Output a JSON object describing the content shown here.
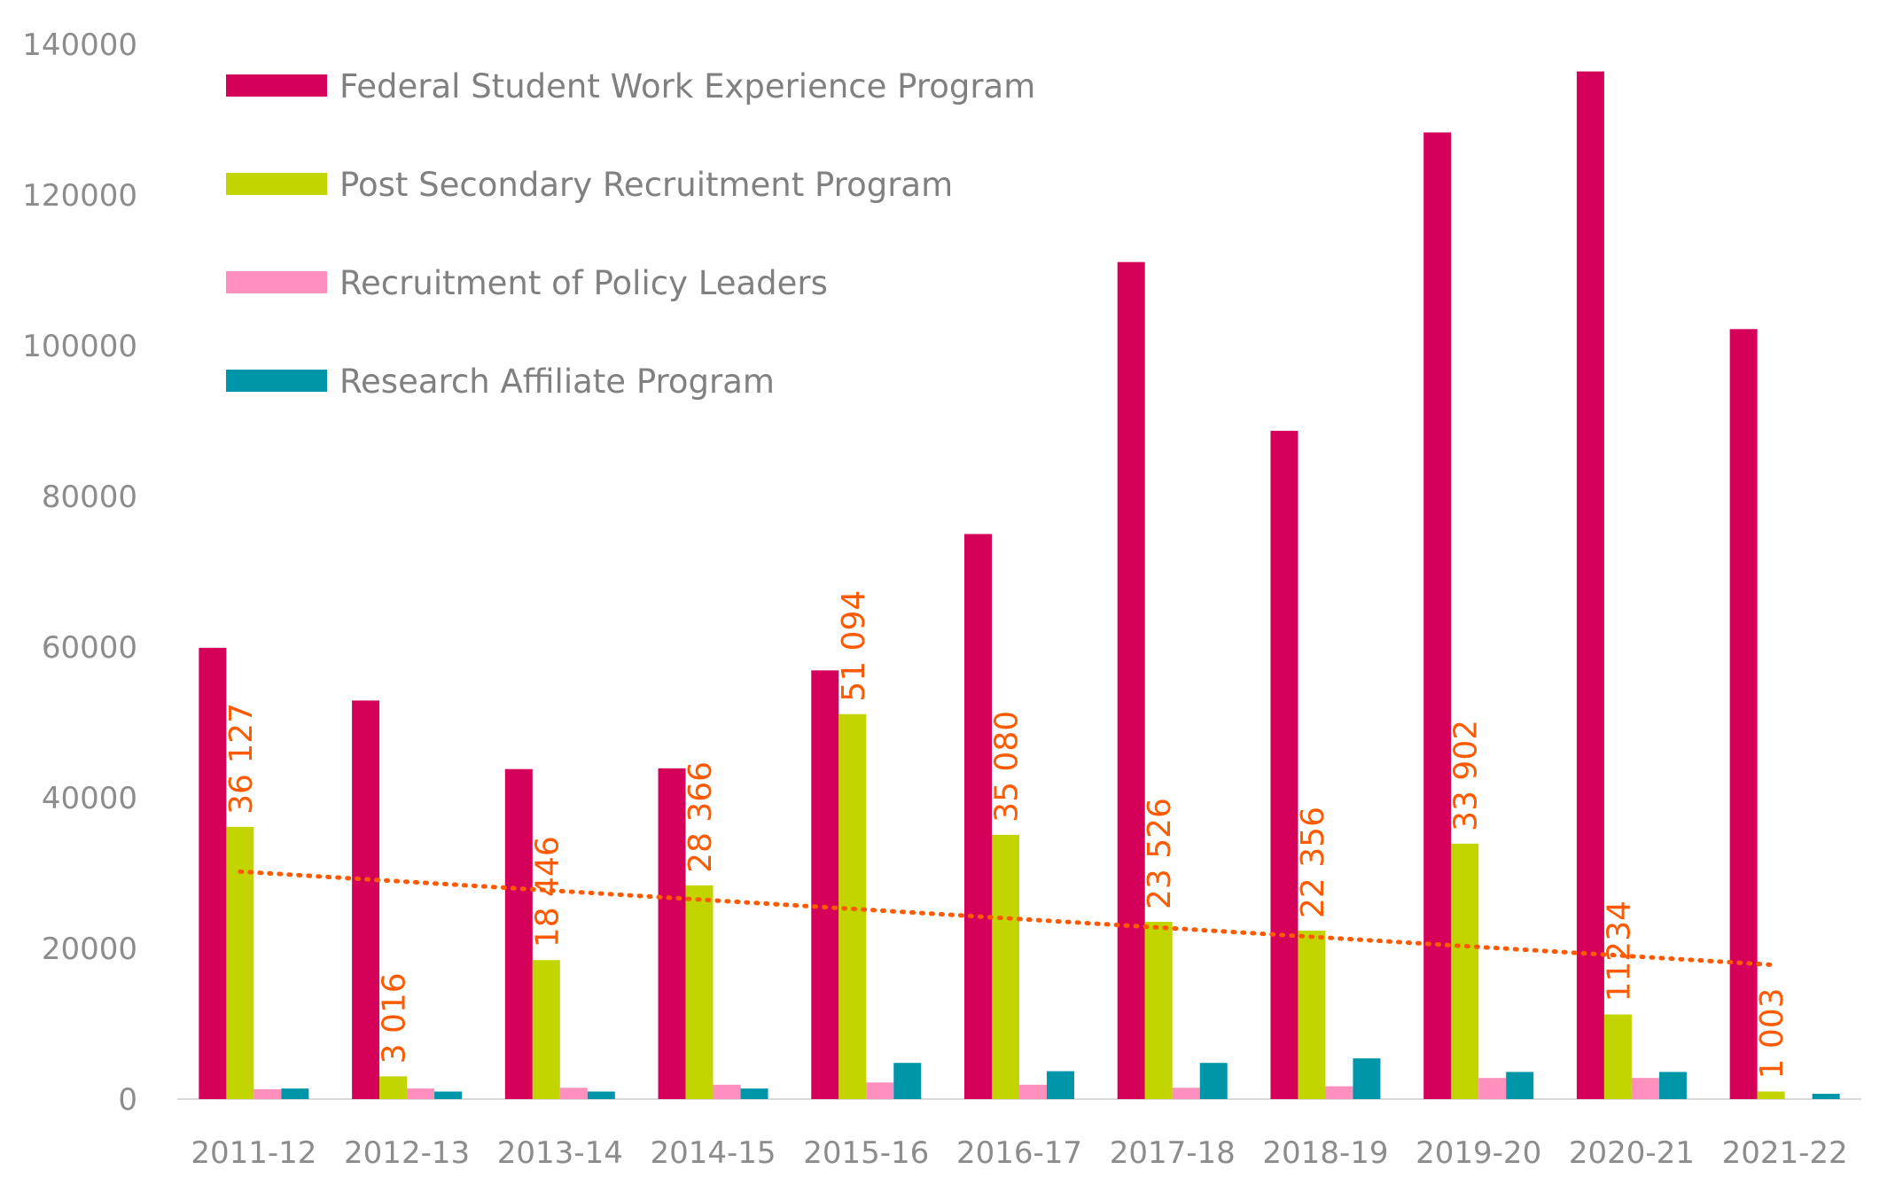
{
  "chart_data": {
    "type": "bar",
    "categories": [
      "2011-12",
      "2012-13",
      "2013-14",
      "2014-15",
      "2015-16",
      "2016-17",
      "2017-18",
      "2018-19",
      "2019-20",
      "2020-21",
      "2021-22"
    ],
    "ylim": [
      0,
      140000
    ],
    "yticks": [
      "0",
      "20000",
      "40000",
      "60000",
      "80000",
      "100000",
      "120000",
      "140000"
    ],
    "ytick_values": [
      0,
      20000,
      40000,
      60000,
      80000,
      100000,
      120000,
      140000
    ],
    "grid": false,
    "legend_position": "top-left",
    "series": [
      {
        "name": "Federal Student Work Experience Program",
        "color": "#d4005a",
        "values": [
          59900,
          52900,
          43800,
          43900,
          56900,
          75000,
          111100,
          88700,
          128300,
          136400,
          102200
        ]
      },
      {
        "name": "Post Secondary Recruitment Program",
        "color": "#c3d500",
        "values": [
          36127,
          3016,
          18446,
          28366,
          51094,
          35080,
          23526,
          22356,
          33902,
          11234,
          1003
        ],
        "data_labels": [
          "36 127",
          "3 016",
          "18 446",
          "28 366",
          "51 094",
          "35 080",
          "23 526",
          "22 356",
          "33 902",
          "11234",
          "1 003"
        ]
      },
      {
        "name": "Recruitment of Policy Leaders",
        "color": "#ff8fbd",
        "values": [
          1300,
          1400,
          1500,
          1900,
          2200,
          1900,
          1500,
          1700,
          2800,
          2800,
          0
        ]
      },
      {
        "name": "Research Affiliate Program",
        "color": "#0096aa",
        "values": [
          1400,
          1000,
          1000,
          1400,
          4800,
          3700,
          4800,
          5400,
          3600,
          3600,
          700
        ]
      }
    ],
    "trendline": {
      "series": "Post Secondary Recruitment Program",
      "style": "dotted",
      "color": "#ff5a00"
    }
  }
}
